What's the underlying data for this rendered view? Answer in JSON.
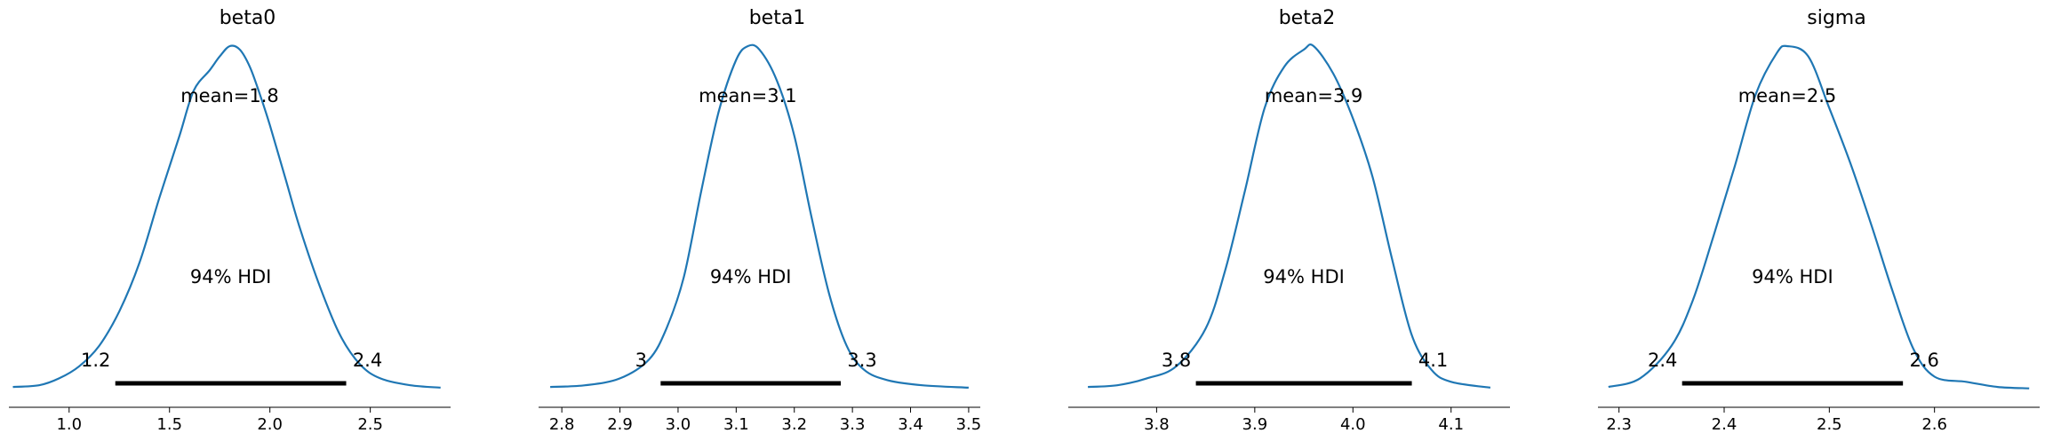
{
  "chart_data": [
    {
      "type": "area",
      "title": "beta0",
      "mean_label": "mean=1.8",
      "hdi_label": "94% HDI",
      "hdi": [
        1.23,
        2.38
      ],
      "hdi_labels": [
        "1.2",
        "2.4"
      ],
      "xlim": [
        0.7,
        2.9
      ],
      "xticks": [
        1.0,
        1.5,
        2.0,
        2.5
      ],
      "xtick_labels": [
        "1.0",
        "1.5",
        "2.0",
        "2.5"
      ],
      "density": [
        [
          0.72,
          0.01
        ],
        [
          0.85,
          0.015
        ],
        [
          0.95,
          0.035
        ],
        [
          1.05,
          0.07
        ],
        [
          1.15,
          0.13
        ],
        [
          1.25,
          0.23
        ],
        [
          1.35,
          0.37
        ],
        [
          1.45,
          0.56
        ],
        [
          1.55,
          0.74
        ],
        [
          1.62,
          0.87
        ],
        [
          1.7,
          0.93
        ],
        [
          1.75,
          0.97
        ],
        [
          1.8,
          1.0
        ],
        [
          1.85,
          0.99
        ],
        [
          1.9,
          0.94
        ],
        [
          1.95,
          0.86
        ],
        [
          2.0,
          0.77
        ],
        [
          2.08,
          0.61
        ],
        [
          2.15,
          0.47
        ],
        [
          2.25,
          0.3
        ],
        [
          2.35,
          0.16
        ],
        [
          2.45,
          0.075
        ],
        [
          2.55,
          0.035
        ],
        [
          2.7,
          0.015
        ],
        [
          2.85,
          0.008
        ]
      ]
    },
    {
      "type": "area",
      "title": "beta1",
      "mean_label": "mean=3.1",
      "hdi_label": "94% HDI",
      "hdi": [
        2.97,
        3.28
      ],
      "hdi_labels": [
        "3",
        "3.3"
      ],
      "xlim": [
        2.76,
        3.52
      ],
      "xticks": [
        2.8,
        2.9,
        3.0,
        3.1,
        3.2,
        3.3,
        3.4,
        3.5
      ],
      "xtick_labels": [
        "2.8",
        "2.9",
        "3.0",
        "3.1",
        "3.2",
        "3.3",
        "3.4",
        "3.5"
      ],
      "density": [
        [
          2.78,
          0.01
        ],
        [
          2.84,
          0.015
        ],
        [
          2.9,
          0.035
        ],
        [
          2.95,
          0.09
        ],
        [
          2.98,
          0.18
        ],
        [
          3.01,
          0.33
        ],
        [
          3.04,
          0.58
        ],
        [
          3.07,
          0.81
        ],
        [
          3.1,
          0.96
        ],
        [
          3.12,
          1.0
        ],
        [
          3.14,
          0.99
        ],
        [
          3.17,
          0.9
        ],
        [
          3.2,
          0.74
        ],
        [
          3.23,
          0.5
        ],
        [
          3.26,
          0.28
        ],
        [
          3.29,
          0.13
        ],
        [
          3.32,
          0.06
        ],
        [
          3.36,
          0.03
        ],
        [
          3.42,
          0.015
        ],
        [
          3.5,
          0.008
        ]
      ]
    },
    {
      "type": "area",
      "title": "beta2",
      "mean_label": "mean=3.9",
      "hdi_label": "94% HDI",
      "hdi": [
        3.84,
        4.06
      ],
      "hdi_labels": [
        "3.8",
        "4.1"
      ],
      "xlim": [
        3.71,
        4.16
      ],
      "xticks": [
        3.8,
        3.9,
        4.0,
        4.1
      ],
      "xtick_labels": [
        "3.8",
        "3.9",
        "4.0",
        "4.1"
      ],
      "density": [
        [
          3.73,
          0.01
        ],
        [
          3.76,
          0.015
        ],
        [
          3.79,
          0.035
        ],
        [
          3.82,
          0.07
        ],
        [
          3.85,
          0.18
        ],
        [
          3.87,
          0.35
        ],
        [
          3.89,
          0.58
        ],
        [
          3.91,
          0.82
        ],
        [
          3.93,
          0.94
        ],
        [
          3.95,
          0.99
        ],
        [
          3.96,
          1.0
        ],
        [
          3.98,
          0.92
        ],
        [
          4.0,
          0.79
        ],
        [
          4.02,
          0.62
        ],
        [
          4.04,
          0.38
        ],
        [
          4.06,
          0.16
        ],
        [
          4.08,
          0.06
        ],
        [
          4.1,
          0.025
        ],
        [
          4.14,
          0.008
        ]
      ]
    },
    {
      "type": "area",
      "title": "sigma",
      "mean_label": "mean=2.5",
      "hdi_label": "94% HDI",
      "hdi": [
        2.36,
        2.57
      ],
      "hdi_labels": [
        "2.4",
        "2.6"
      ],
      "xlim": [
        2.28,
        2.7
      ],
      "xticks": [
        2.3,
        2.4,
        2.5,
        2.6
      ],
      "xtick_labels": [
        "2.3",
        "2.4",
        "2.5",
        "2.6"
      ],
      "density": [
        [
          2.29,
          0.01
        ],
        [
          2.32,
          0.035
        ],
        [
          2.35,
          0.13
        ],
        [
          2.37,
          0.26
        ],
        [
          2.39,
          0.45
        ],
        [
          2.41,
          0.65
        ],
        [
          2.43,
          0.86
        ],
        [
          2.45,
          0.98
        ],
        [
          2.46,
          1.0
        ],
        [
          2.48,
          0.97
        ],
        [
          2.5,
          0.82
        ],
        [
          2.52,
          0.66
        ],
        [
          2.54,
          0.48
        ],
        [
          2.56,
          0.29
        ],
        [
          2.58,
          0.12
        ],
        [
          2.6,
          0.04
        ],
        [
          2.63,
          0.025
        ],
        [
          2.66,
          0.01
        ],
        [
          2.69,
          0.006
        ]
      ]
    }
  ]
}
